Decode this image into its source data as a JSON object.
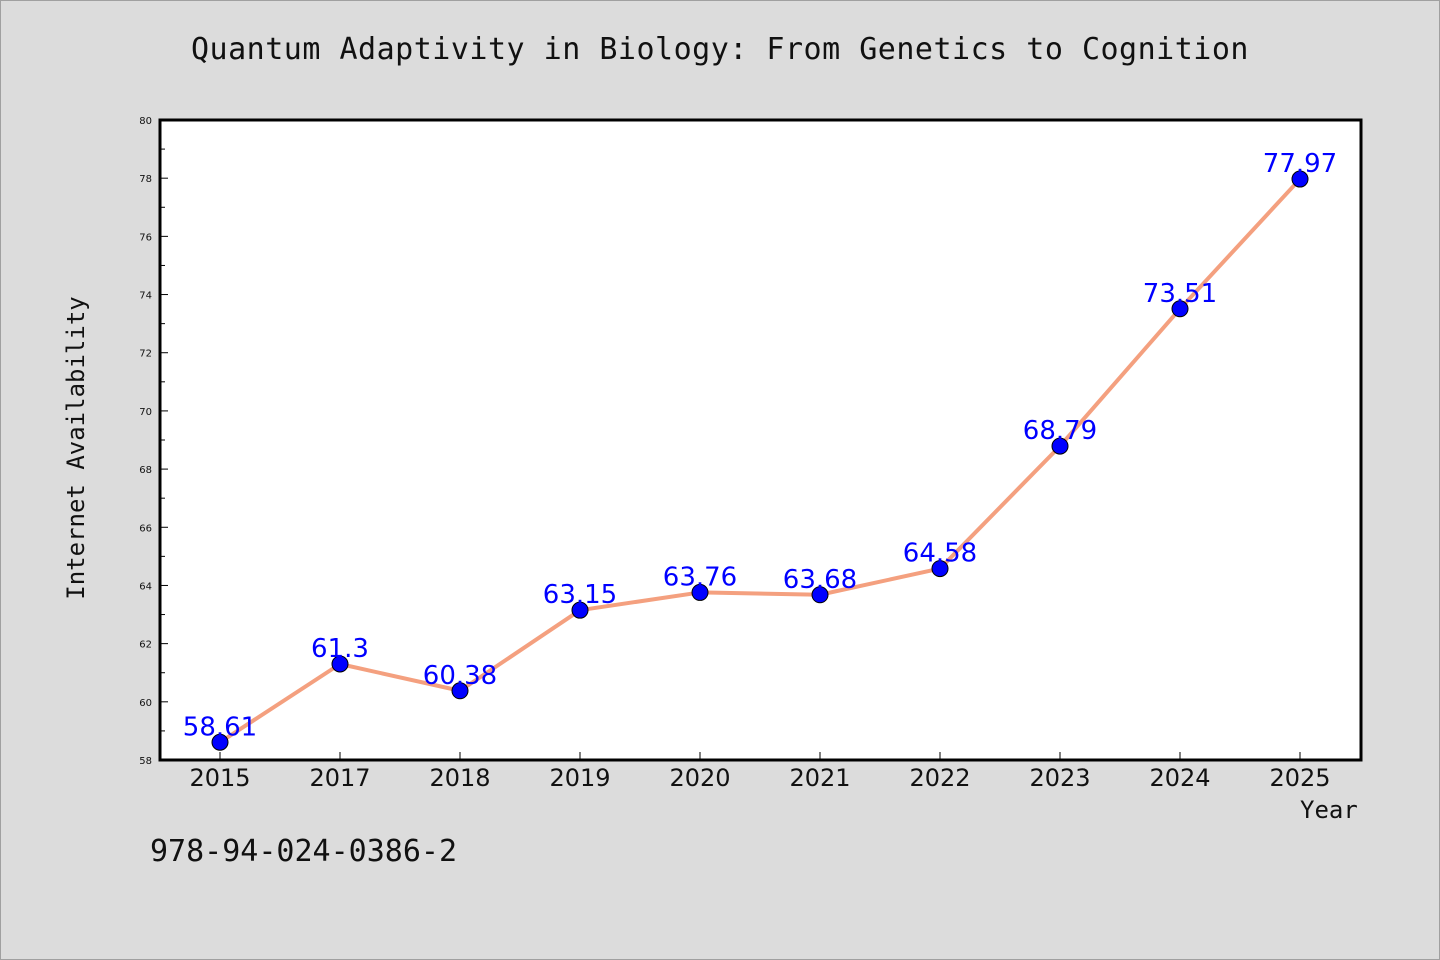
{
  "chart_data": {
    "type": "line",
    "title": "Quantum Adaptivity in Biology: From Genetics to Cognition",
    "xlabel": "Year",
    "ylabel": "Internet Availability",
    "categories": [
      "2015",
      "2017",
      "2018",
      "2019",
      "2020",
      "2021",
      "2022",
      "2023",
      "2024",
      "2025"
    ],
    "series": [
      {
        "values": [
          58.61,
          61.3,
          60.38,
          63.15,
          63.76,
          63.68,
          64.58,
          68.79,
          73.51,
          77.97
        ],
        "labels": [
          "58.61",
          "61.3",
          "60.38",
          "63.15",
          "63.76",
          "63.68",
          "64.58",
          "68.79",
          "73.51",
          "77.97"
        ],
        "line_color": "#f4a07f",
        "marker_color": "#0000ff"
      }
    ],
    "ylim": [
      58,
      80
    ],
    "yticks": [
      58,
      60,
      62,
      64,
      66,
      68,
      70,
      72,
      74,
      76,
      78,
      80
    ],
    "grid": false,
    "background": "#dcdcdc",
    "plot_background": "#ffffff"
  },
  "footer": {
    "isbn": "978-94-024-0386-2"
  }
}
